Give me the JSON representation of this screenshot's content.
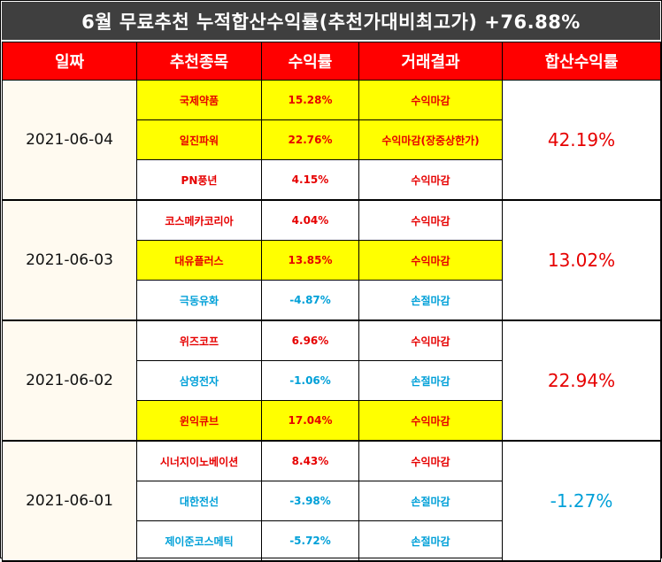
{
  "title": "6월 무료추천 누적합산수익률(추천가대비최고가) +76.88%",
  "headers": [
    "일짜",
    "추천종목",
    "수익률",
    "거래결과",
    "합산수익률"
  ],
  "groups": [
    {
      "date": "2021-06-04",
      "total": "42.19%",
      "total_sign": "pos",
      "rows": [
        {
          "name": "국제약품",
          "ret": "15.28%",
          "result": "수익마감",
          "sign": "pos",
          "highlight": true
        },
        {
          "name": "일진파워",
          "ret": "22.76%",
          "result": "수익마감(장중상한가)",
          "sign": "pos",
          "highlight": true
        },
        {
          "name": "PN풍년",
          "ret": "4.15%",
          "result": "수익마감",
          "sign": "pos",
          "highlight": false
        }
      ]
    },
    {
      "date": "2021-06-03",
      "total": "13.02%",
      "total_sign": "pos",
      "rows": [
        {
          "name": "코스메카코리아",
          "ret": "4.04%",
          "result": "수익마감",
          "sign": "pos",
          "highlight": false
        },
        {
          "name": "대유플러스",
          "ret": "13.85%",
          "result": "수익마감",
          "sign": "pos",
          "highlight": true
        },
        {
          "name": "극동유화",
          "ret": "-4.87%",
          "result": "손절마감",
          "sign": "neg",
          "highlight": false
        }
      ]
    },
    {
      "date": "2021-06-02",
      "total": "22.94%",
      "total_sign": "pos",
      "rows": [
        {
          "name": "위즈코프",
          "ret": "6.96%",
          "result": "수익마감",
          "sign": "pos",
          "highlight": false
        },
        {
          "name": "삼영전자",
          "ret": "-1.06%",
          "result": "손절마감",
          "sign": "neg",
          "highlight": false
        },
        {
          "name": "윈익큐브",
          "ret": "17.04%",
          "result": "수익마감",
          "sign": "pos",
          "highlight": true
        }
      ]
    },
    {
      "date": "2021-06-01",
      "total": "-1.27%",
      "total_sign": "neg",
      "rows": [
        {
          "name": "시너지이노베이션",
          "ret": "8.43%",
          "result": "수익마감",
          "sign": "pos",
          "highlight": false
        },
        {
          "name": "대한전선",
          "ret": "-3.98%",
          "result": "손절마감",
          "sign": "neg",
          "highlight": false
        },
        {
          "name": "제이준코스메틱",
          "ret": "-5.72%",
          "result": "손절마감",
          "sign": "neg",
          "highlight": false
        }
      ]
    }
  ],
  "colors": {
    "title_bg": "#3f3f3f",
    "header_bg": "#ff0000",
    "highlight": "#ffff00",
    "positive": "#e60000",
    "negative": "#00a0d8"
  }
}
